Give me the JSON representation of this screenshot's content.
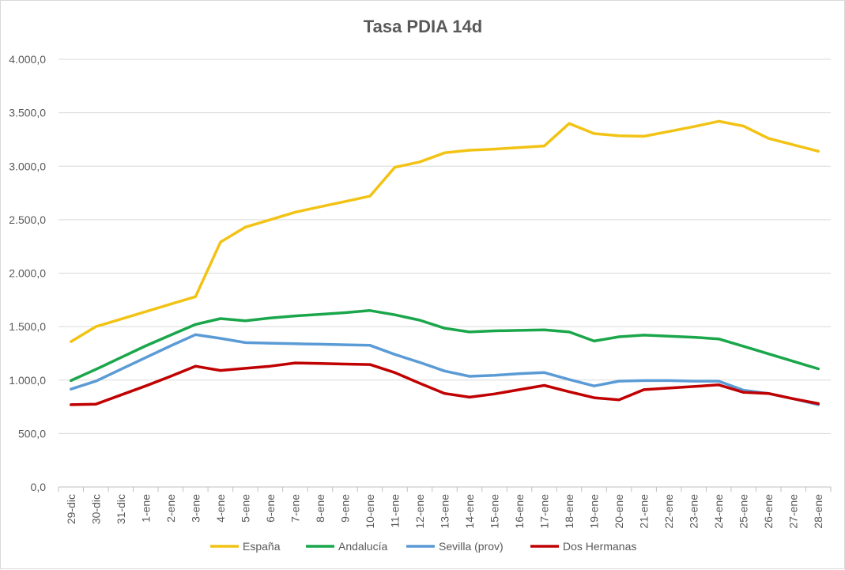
{
  "chart_data": {
    "type": "line",
    "title": "Tasa PDIA 14d",
    "xlabel": "",
    "ylabel": "",
    "ylim": [
      0,
      4000
    ],
    "y_ticks": [
      0,
      500,
      1000,
      1500,
      2000,
      2500,
      3000,
      3500,
      4000
    ],
    "y_tick_labels": [
      "0,0",
      "500,0",
      "1.000,0",
      "1.500,0",
      "2.000,0",
      "2.500,0",
      "3.000,0",
      "3.500,0",
      "4.000,0"
    ],
    "grid": true,
    "legend_position": "bottom",
    "categories": [
      "29-dic",
      "30-dic",
      "31-dic",
      "1-ene",
      "2-ene",
      "3-ene",
      "4-ene",
      "5-ene",
      "6-ene",
      "7-ene",
      "8-ene",
      "9-ene",
      "10-ene",
      "11-ene",
      "12-ene",
      "13-ene",
      "14-ene",
      "15-ene",
      "16-ene",
      "17-ene",
      "18-ene",
      "19-ene",
      "20-ene",
      "21-ene",
      "22-ene",
      "23-ene",
      "24-ene",
      "25-ene",
      "26-ene",
      "27-ene",
      "28-ene"
    ],
    "series": [
      {
        "name": "España",
        "color": "#f2c314",
        "values": [
          1360,
          1500,
          1570,
          1640,
          1710,
          1780,
          2290,
          2430,
          2500,
          2570,
          2620,
          2670,
          2720,
          2990,
          3040,
          3125,
          3150,
          3160,
          3175,
          3190,
          3400,
          3305,
          3285,
          3280,
          3325,
          3370,
          3420,
          3375,
          3260,
          3200,
          3140
        ]
      },
      {
        "name": "Andalucía",
        "color": "#1aa64a",
        "values": [
          995,
          1100,
          1210,
          1320,
          1420,
          1520,
          1575,
          1555,
          1580,
          1600,
          1615,
          1630,
          1650,
          1610,
          1560,
          1485,
          1450,
          1460,
          1465,
          1470,
          1450,
          1365,
          1405,
          1420,
          1410,
          1400,
          1385,
          1315,
          1245,
          1175,
          1105
        ]
      },
      {
        "name": "Sevilla (prov)",
        "color": "#5b9bd5",
        "values": [
          915,
          990,
          1100,
          1210,
          1320,
          1425,
          1390,
          1350,
          1345,
          1340,
          1335,
          1330,
          1325,
          1240,
          1165,
          1085,
          1035,
          1045,
          1060,
          1070,
          1005,
          945,
          990,
          995,
          995,
          990,
          990,
          905,
          875,
          825,
          770
        ]
      },
      {
        "name": "Dos Hermanas",
        "color": "#c00000",
        "values": [
          770,
          775,
          860,
          945,
          1035,
          1130,
          1090,
          1110,
          1130,
          1160,
          1155,
          1150,
          1145,
          1070,
          970,
          875,
          840,
          870,
          910,
          950,
          890,
          835,
          815,
          910,
          925,
          940,
          955,
          885,
          875,
          825,
          780
        ]
      }
    ]
  }
}
